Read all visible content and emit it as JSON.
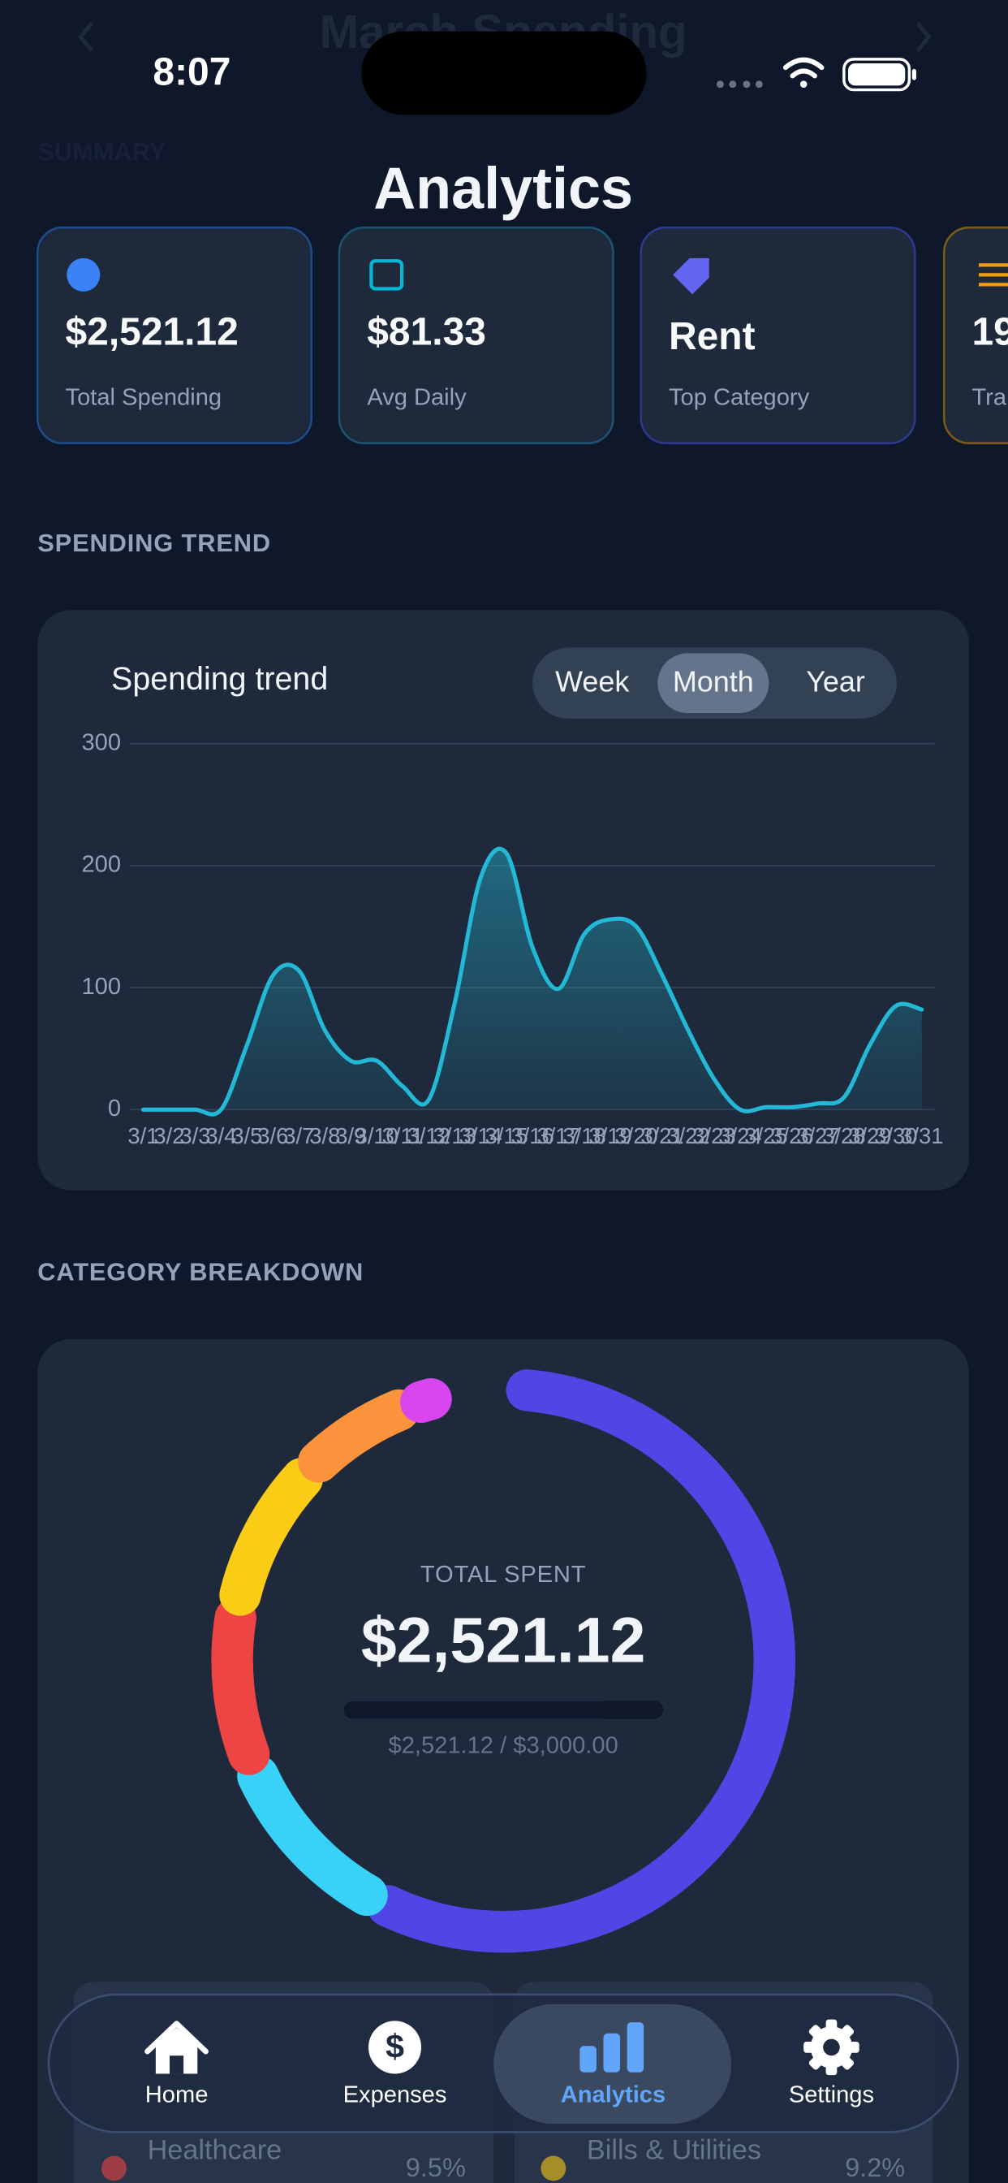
{
  "status_bar": {
    "time": "8:07"
  },
  "header": {
    "ghost_title": "March Spending",
    "ghost_section": "SUMMARY",
    "title": "Analytics"
  },
  "summary_cards": [
    {
      "value": "$2,521.12",
      "label": "Total Spending"
    },
    {
      "value": "$81.33",
      "label": "Avg Daily"
    },
    {
      "value": "Rent",
      "label": "Top Category"
    },
    {
      "value": "19",
      "label": "Transactions"
    }
  ],
  "trend_section": "SPENDING TREND",
  "trend_controls": {
    "options": [
      "Week",
      "Month",
      "Year"
    ],
    "selected": 1
  },
  "chart_data": {
    "type": "line",
    "title": "Spending trend",
    "categories": [
      "3/1",
      "3/2",
      "3/3",
      "3/4",
      "3/5",
      "3/6",
      "3/7",
      "3/8",
      "3/9",
      "3/10",
      "3/11",
      "3/12",
      "3/13",
      "3/14",
      "3/15",
      "3/16",
      "3/17",
      "3/18",
      "3/19",
      "3/20",
      "3/21",
      "3/22",
      "3/23",
      "3/24",
      "3/25",
      "3/26",
      "3/27",
      "3/28",
      "3/29",
      "3/30",
      "3/31"
    ],
    "values": [
      0,
      0,
      0,
      0,
      53,
      110,
      114,
      65,
      40,
      40,
      19,
      8,
      87,
      190,
      210,
      133,
      99,
      144,
      156,
      150,
      110,
      65,
      25,
      0,
      2,
      2,
      5,
      10,
      53,
      85,
      82
    ],
    "color": "#22b8d6",
    "ylim": [
      0,
      300
    ],
    "yticks": [
      0,
      100,
      200,
      300
    ],
    "grid": true
  },
  "category_section": "CATEGORY BREAKDOWN",
  "donut": {
    "type": "donut",
    "center_label": "TOTAL SPENT",
    "center_value": "$2,521.12",
    "budget": {
      "spent": 2521.12,
      "limit": 3000,
      "label": "$2,521.12 / $3,000.00"
    },
    "segments": [
      {
        "color": "#5046e5",
        "value": 57
      },
      {
        "color": "#38d2f8",
        "value": 11
      },
      {
        "name": "Healthcare",
        "color": "#ef4444",
        "value": 9.5,
        "value_label": "9.5%"
      },
      {
        "name": "Bills & Utilities",
        "color": "#facc15",
        "value": 9.2,
        "value_label": "9.2%"
      },
      {
        "color": "#fb923c",
        "value": 7
      },
      {
        "color": "#d946ef",
        "value": 2
      }
    ]
  },
  "nav": {
    "items": [
      "Home",
      "Expenses",
      "Analytics",
      "Settings"
    ],
    "active": 2
  }
}
